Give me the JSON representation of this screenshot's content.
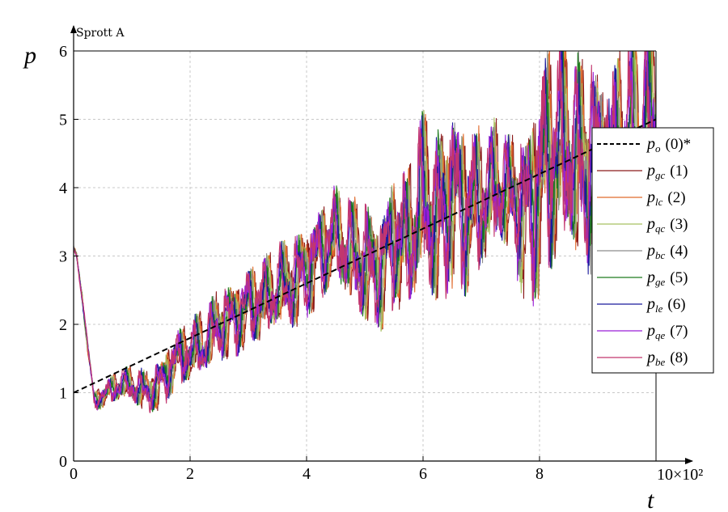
{
  "chart_data": {
    "type": "line",
    "title": "Sprott A",
    "xlabel": "t",
    "ylabel": "p",
    "x_multiplier_label": "10×10²",
    "xlim": [
      0,
      10
    ],
    "ylim": [
      0,
      6
    ],
    "x_ticks": [
      "0",
      "2",
      "4",
      "6",
      "8"
    ],
    "y_ticks": [
      "0",
      "1",
      "2",
      "3",
      "4",
      "5",
      "6"
    ],
    "grid": true,
    "legend_position": "right",
    "reference_series": {
      "name": "p_o (0)*",
      "symbol": "p",
      "subscript": "o",
      "number": "(0)*",
      "color": "#000000",
      "style": "dashed",
      "x": [
        0,
        10
      ],
      "y": [
        1,
        5
      ]
    },
    "series": [
      {
        "name": "p_gc (1)",
        "symbol": "p",
        "subscript": "gc",
        "number": "(1)",
        "color": "#8b1a1a"
      },
      {
        "name": "p_lc (2)",
        "symbol": "p",
        "subscript": "lc",
        "number": "(2)",
        "color": "#e06a2c"
      },
      {
        "name": "p_qc (3)",
        "symbol": "p",
        "subscript": "qc",
        "number": "(3)",
        "color": "#a8c060"
      },
      {
        "name": "p_bc (4)",
        "symbol": "p",
        "subscript": "bc",
        "number": "(4)",
        "color": "#8c8c8c"
      },
      {
        "name": "p_ge (5)",
        "symbol": "p",
        "subscript": "ge",
        "number": "(5)",
        "color": "#1e7a1e"
      },
      {
        "name": "p_le (6)",
        "symbol": "p",
        "subscript": "le",
        "number": "(6)",
        "color": "#1a1a9c"
      },
      {
        "name": "p_qe (7)",
        "symbol": "p",
        "subscript": "qe",
        "number": "(7)",
        "color": "#9a1fd6"
      },
      {
        "name": "p_be (8)",
        "symbol": "p",
        "subscript": "be",
        "number": "(8)",
        "color": "#c2366e"
      }
    ],
    "trend_x": [
      0,
      0.05,
      0.15,
      0.25,
      0.35,
      0.5,
      0.75,
      1.0,
      1.25,
      1.5,
      1.75,
      2.0,
      2.25,
      2.5,
      2.75,
      3.0,
      3.25,
      3.5,
      3.75,
      4.0,
      4.25,
      4.5,
      4.75,
      5.0,
      5.25,
      5.5,
      5.75,
      6.0,
      6.25,
      6.5,
      6.75,
      7.0,
      7.25,
      7.5,
      7.75,
      8.0,
      8.25,
      8.5,
      8.75,
      9.0,
      9.25,
      9.5,
      9.75,
      10.0
    ],
    "trend_y": [
      3.1,
      3.0,
      2.4,
      1.6,
      0.9,
      0.95,
      1.1,
      1.1,
      1.0,
      1.15,
      1.5,
      1.6,
      1.7,
      2.0,
      2.1,
      2.3,
      2.35,
      2.5,
      2.6,
      2.8,
      3.1,
      3.3,
      3.0,
      2.9,
      2.8,
      3.3,
      3.2,
      3.8,
      3.5,
      4.0,
      3.7,
      3.8,
      4.0,
      3.9,
      3.6,
      4.2,
      4.5,
      4.6,
      4.3,
      4.4,
      4.3,
      4.6,
      4.8,
      5.0
    ],
    "amp_x": [
      0,
      0.4,
      1.5,
      2.5,
      3.5,
      4.5,
      5.0,
      5.5,
      6.0,
      6.5,
      7.0,
      7.5,
      8.0,
      9.0,
      10.0
    ],
    "amp_y": [
      0.05,
      0.15,
      0.35,
      0.5,
      0.6,
      0.7,
      0.8,
      0.9,
      1.2,
      1.3,
      1.0,
      0.8,
      1.6,
      1.5,
      1.5
    ]
  }
}
